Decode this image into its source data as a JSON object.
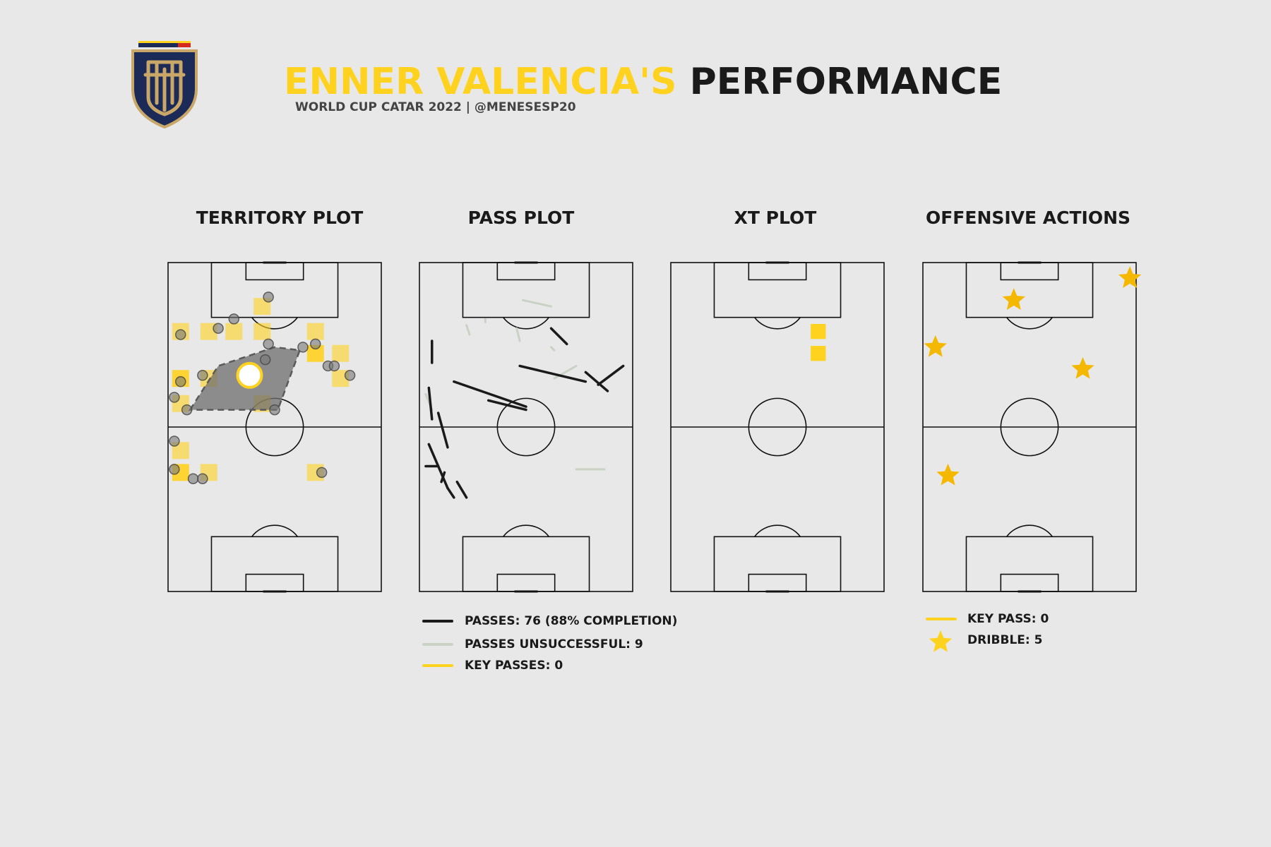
{
  "header": {
    "title_name": "ENNER VALENCIA'S",
    "title_rest": "PERFORMANCE",
    "subtitle": "WORLD CUP CATAR 2022 | @MENESESP20"
  },
  "colors": {
    "background": "#e8e8e8",
    "accent": "#ffd21f",
    "dark": "#1a1a1a",
    "unsuccessful": "#c9d2c4",
    "badge_navy": "#1b2a57",
    "badge_gold": "#c9a768"
  },
  "chart_data": [
    {
      "type": "scatter",
      "title": "TERRITORY PLOT",
      "description_units": "pitch coordinates: x 0-68 across, y 0-105 from own goal line to attacking goal line",
      "heat_cells": [
        {
          "x": 30,
          "y": 91,
          "level": 0.6
        },
        {
          "x": 4,
          "y": 83,
          "level": 0.6
        },
        {
          "x": 13,
          "y": 83,
          "level": 0.6
        },
        {
          "x": 21,
          "y": 83,
          "level": 0.6
        },
        {
          "x": 30,
          "y": 83,
          "level": 0.6
        },
        {
          "x": 47,
          "y": 83,
          "level": 0.6
        },
        {
          "x": 47,
          "y": 76,
          "level": 0.9
        },
        {
          "x": 55,
          "y": 76,
          "level": 0.6
        },
        {
          "x": 4,
          "y": 68,
          "level": 0.9
        },
        {
          "x": 13,
          "y": 68,
          "level": 0.6
        },
        {
          "x": 55,
          "y": 68,
          "level": 0.6
        },
        {
          "x": 4,
          "y": 60,
          "level": 0.6
        },
        {
          "x": 30,
          "y": 60,
          "level": 0.6
        },
        {
          "x": 4,
          "y": 45,
          "level": 0.6
        },
        {
          "x": 4,
          "y": 38,
          "level": 0.9
        },
        {
          "x": 13,
          "y": 38,
          "level": 0.6
        },
        {
          "x": 47,
          "y": 38,
          "level": 0.6
        }
      ],
      "touches": [
        {
          "x": 32,
          "y": 94
        },
        {
          "x": 4,
          "y": 82
        },
        {
          "x": 16,
          "y": 84
        },
        {
          "x": 21,
          "y": 87
        },
        {
          "x": 32,
          "y": 79
        },
        {
          "x": 31,
          "y": 74
        },
        {
          "x": 43,
          "y": 78
        },
        {
          "x": 47,
          "y": 79
        },
        {
          "x": 51,
          "y": 72
        },
        {
          "x": 53,
          "y": 72
        },
        {
          "x": 58,
          "y": 69
        },
        {
          "x": 11,
          "y": 69
        },
        {
          "x": 4,
          "y": 67
        },
        {
          "x": 2,
          "y": 62
        },
        {
          "x": 6,
          "y": 58
        },
        {
          "x": 34,
          "y": 58
        },
        {
          "x": 2,
          "y": 48
        },
        {
          "x": 2,
          "y": 39
        },
        {
          "x": 8,
          "y": 36
        },
        {
          "x": 11,
          "y": 36
        },
        {
          "x": 49,
          "y": 38
        }
      ],
      "hull": [
        [
          7,
          58
        ],
        [
          16,
          72
        ],
        [
          34,
          78
        ],
        [
          42,
          77
        ],
        [
          35,
          58
        ]
      ],
      "average_position": {
        "x": 26,
        "y": 69
      }
    },
    {
      "type": "line",
      "title": "PASS PLOT",
      "passes_successful": [
        [
          4,
          80,
          4,
          73
        ],
        [
          11,
          67,
          34,
          59
        ],
        [
          22,
          61,
          34,
          58
        ],
        [
          32,
          72,
          53,
          67
        ],
        [
          42,
          84,
          47,
          79
        ],
        [
          53,
          70,
          60,
          64
        ],
        [
          57,
          66,
          65,
          72
        ],
        [
          3,
          65,
          4,
          55
        ],
        [
          6,
          57,
          9,
          46
        ],
        [
          3,
          47,
          9,
          33
        ],
        [
          2,
          40,
          6,
          40
        ],
        [
          9,
          33,
          11,
          30
        ],
        [
          12,
          35,
          15,
          30
        ],
        [
          7,
          35,
          8,
          38
        ]
      ],
      "passes_unsuccessful": [
        [
          33,
          93,
          42,
          91
        ],
        [
          15,
          85,
          16,
          82
        ],
        [
          31,
          84,
          32,
          80
        ],
        [
          42,
          78,
          43,
          77
        ],
        [
          43,
          68,
          50,
          72
        ],
        [
          50,
          39,
          59,
          39
        ],
        [
          2,
          63,
          4,
          58
        ],
        [
          21,
          87,
          21,
          86
        ]
      ],
      "key_passes": [],
      "legend": [
        {
          "label": "PASSES: 76 (88% COMPLETION)",
          "style": "successful"
        },
        {
          "label": "PASSES UNSUCCESSFUL: 9",
          "style": "unsuccessful"
        },
        {
          "label": "KEY PASSES: 0",
          "style": "key"
        }
      ]
    },
    {
      "type": "heatmap",
      "title": "XT PLOT",
      "cells": [
        {
          "x": 47,
          "y": 83,
          "value": 1
        },
        {
          "x": 47,
          "y": 76,
          "value": 1
        }
      ]
    },
    {
      "type": "scatter",
      "title": "OFFENSIVE ACTIONS",
      "dribbles": [
        {
          "x": 66,
          "y": 100
        },
        {
          "x": 29,
          "y": 93
        },
        {
          "x": 4,
          "y": 78
        },
        {
          "x": 51,
          "y": 71
        },
        {
          "x": 8,
          "y": 37
        }
      ],
      "key_passes": [],
      "legend": [
        {
          "label": "KEY PASS: 0",
          "style": "key"
        },
        {
          "label": "DRIBBLE: 5",
          "style": "dribble"
        }
      ]
    }
  ]
}
